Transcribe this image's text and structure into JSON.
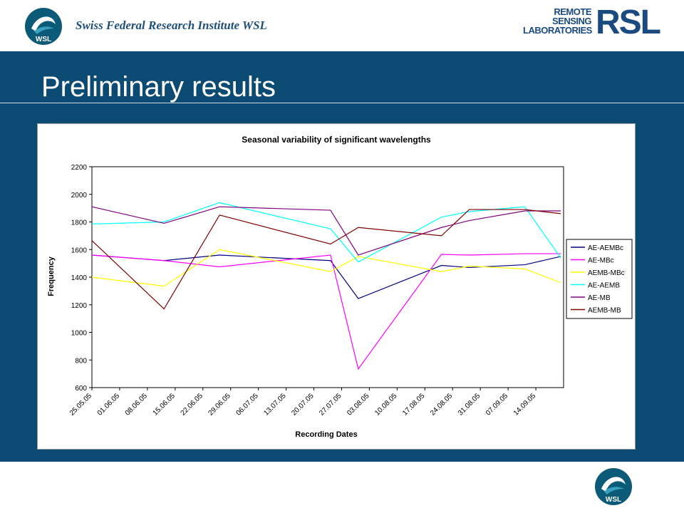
{
  "header": {
    "institute": "Swiss Federal  Research Institute WSL",
    "wsl_logo_text": "WSL",
    "rsl_lines": [
      "REMOTE",
      "SENSING",
      "LABORATORIES"
    ],
    "rsl_mark": "RSL"
  },
  "slide": {
    "title": "Preliminary results"
  },
  "colors": {
    "band": "#0b4a73",
    "header_text": "#1e4f7a",
    "rsl": "#1a4a80"
  },
  "chart_data": {
    "type": "line",
    "title": "Seasonal variability of significant wavelengths",
    "xlabel": "Recording Dates",
    "ylabel": "Frequency",
    "ylim": [
      600,
      2200
    ],
    "yticks": [
      600,
      800,
      1000,
      1200,
      1400,
      1600,
      1800,
      2000,
      2200
    ],
    "categories": [
      "25.05.05",
      "01.06.05",
      "08.06.05",
      "15.06.05",
      "22.06.05",
      "29.06.05",
      "06.07.05",
      "13.07.05",
      "20.07.05",
      "27.07.05",
      "03.08.05",
      "10.08.05",
      "17.08.05",
      "24.08.05",
      "31.08.05",
      "07.09.05",
      "14.09.05"
    ],
    "grid": false,
    "legend": "right",
    "x_values": [
      "25.05.05",
      "08.06.05",
      "22.06.05",
      "20.07.05",
      "27.07.05",
      "17.08.05",
      "24.08.05",
      "07.09.05",
      "14.09.05"
    ],
    "series": [
      {
        "name": "AE-AEMBc",
        "color": "#000080",
        "values": [
          1560,
          1520,
          1560,
          1520,
          1245,
          1485,
          1470,
          1490,
          1550
        ]
      },
      {
        "name": "AE-MBc",
        "color": "#ff00ff",
        "values": [
          1560,
          1520,
          1475,
          1560,
          735,
          1565,
          1560,
          1570,
          1570
        ]
      },
      {
        "name": "AEMB-MBc",
        "color": "#ffff00",
        "values": [
          1400,
          1335,
          1600,
          1440,
          1550,
          1440,
          1480,
          1460,
          1360
        ]
      },
      {
        "name": "AE-AEMB",
        "color": "#00ffff",
        "values": [
          1785,
          1800,
          1940,
          1750,
          1510,
          1835,
          1875,
          1910,
          1540
        ]
      },
      {
        "name": "AE-MB",
        "color": "#800080",
        "values": [
          1910,
          1790,
          1910,
          1885,
          1560,
          1760,
          1810,
          1880,
          1880
        ]
      },
      {
        "name": "AEMB-MB",
        "color": "#800000",
        "values": [
          1665,
          1170,
          1850,
          1640,
          1760,
          1700,
          1890,
          1890,
          1860
        ]
      }
    ]
  }
}
